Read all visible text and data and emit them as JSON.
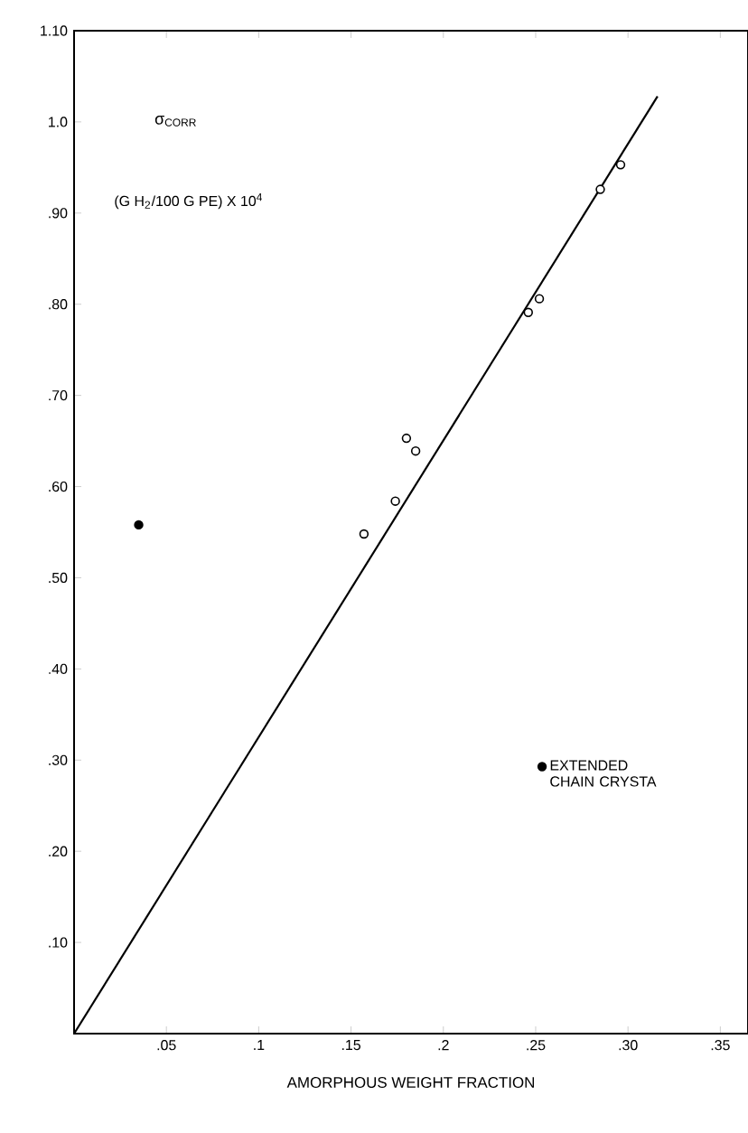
{
  "chart_data": {
    "type": "scatter",
    "xlabel": "AMORPHOUS WEIGHT FRACTION",
    "ylabel": "σ$_{CORR}$",
    "annotations": [
      "(G H$_{2}$/100 G PE) X 10$^{4}$"
    ],
    "series": [
      {
        "color": "#ffffff",
        "marker": "circle",
        "x": [
          0.157,
          0.174,
          0.18,
          0.185,
          0.246,
          0.252,
          0.285,
          0.296
        ],
        "values": [
          0.548,
          0.584,
          0.653,
          0.639,
          0.791,
          0.806,
          0.926,
          0.953
        ]
      },
      {
        "name": "EXTENDED CHAIN CRYSTA",
        "color": "#000000",
        "marker": "circle",
        "x": [
          0.035
        ],
        "values": [
          0.558
        ]
      },
      {
        "type": "line",
        "color": "#000000",
        "marker": "none",
        "line_style": "solid",
        "x": [
          0,
          0.316
        ],
        "values": [
          0,
          1.028
        ]
      }
    ],
    "xlim": [
      0,
      0.365
    ],
    "ylim": [
      0,
      1.1
    ],
    "xticks": [
      {
        "value": 0.05,
        "label": ".05"
      },
      {
        "value": 0.1,
        "label": ".1"
      },
      {
        "value": 0.15,
        "label": ".15"
      },
      {
        "value": 0.2,
        "label": ".2"
      },
      {
        "value": 0.25,
        "label": ".25"
      },
      {
        "value": 0.3,
        "label": ".30"
      },
      {
        "value": 0.35,
        "label": ".35"
      }
    ],
    "yticks": [
      {
        "value": 0.1,
        "label": ".10"
      },
      {
        "value": 0.2,
        "label": ".20"
      },
      {
        "value": 0.3,
        "label": ".30"
      },
      {
        "value": 0.4,
        "label": ".40"
      },
      {
        "value": 0.5,
        "label": ".50"
      },
      {
        "value": 0.6,
        "label": ".60"
      },
      {
        "value": 0.7,
        "label": ".70"
      },
      {
        "value": 0.8,
        "label": ".80"
      },
      {
        "value": 0.9,
        "label": ".90"
      },
      {
        "value": 1.0,
        "label": "1.0"
      },
      {
        "value": 1.1,
        "label": "1.10"
      }
    ],
    "grid": false,
    "legend": "right"
  }
}
